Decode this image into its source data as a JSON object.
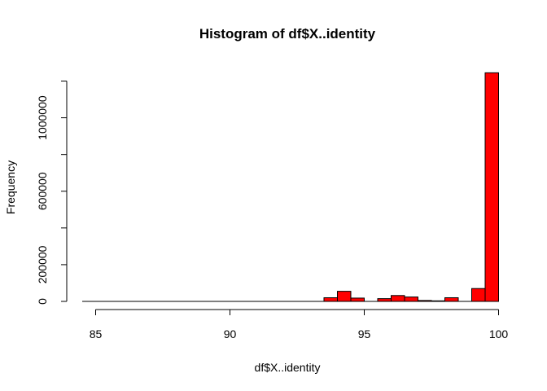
{
  "chart_data": {
    "type": "bar",
    "title": "Histogram of df$X..identity",
    "xlabel": "df$X..identity",
    "ylabel": "Frequency",
    "bar_color": "#ff0000",
    "bar_edge_color": "#000000",
    "xlim": [
      85,
      100
    ],
    "ylim": [
      0,
      1200000
    ],
    "x_ticks": [
      85,
      90,
      95,
      100
    ],
    "y_ticks": [
      0,
      200000,
      400000,
      600000,
      800000,
      1000000,
      1200000
    ],
    "y_tick_labels": [
      "0",
      "200000",
      "",
      "600000",
      "",
      "1000000",
      ""
    ],
    "bins": [
      {
        "x0": 84.5,
        "x1": 85.0,
        "value": 0
      },
      {
        "x0": 85.0,
        "x1": 85.5,
        "value": 0
      },
      {
        "x0": 85.5,
        "x1": 86.0,
        "value": 0
      },
      {
        "x0": 86.0,
        "x1": 86.5,
        "value": 0
      },
      {
        "x0": 86.5,
        "x1": 87.0,
        "value": 0
      },
      {
        "x0": 87.0,
        "x1": 87.5,
        "value": 0
      },
      {
        "x0": 87.5,
        "x1": 88.0,
        "value": 0
      },
      {
        "x0": 88.0,
        "x1": 88.5,
        "value": 0
      },
      {
        "x0": 88.5,
        "x1": 89.0,
        "value": 0
      },
      {
        "x0": 89.0,
        "x1": 89.5,
        "value": 0
      },
      {
        "x0": 89.5,
        "x1": 90.0,
        "value": 0
      },
      {
        "x0": 90.0,
        "x1": 90.5,
        "value": 0
      },
      {
        "x0": 90.5,
        "x1": 91.0,
        "value": 0
      },
      {
        "x0": 91.0,
        "x1": 91.5,
        "value": 0
      },
      {
        "x0": 91.5,
        "x1": 92.0,
        "value": 0
      },
      {
        "x0": 92.0,
        "x1": 92.5,
        "value": 0
      },
      {
        "x0": 92.5,
        "x1": 93.0,
        "value": 0
      },
      {
        "x0": 93.0,
        "x1": 93.5,
        "value": 0
      },
      {
        "x0": 93.5,
        "x1": 94.0,
        "value": 20000
      },
      {
        "x0": 94.0,
        "x1": 94.5,
        "value": 55000
      },
      {
        "x0": 94.5,
        "x1": 95.0,
        "value": 18000
      },
      {
        "x0": 95.0,
        "x1": 95.5,
        "value": 0
      },
      {
        "x0": 95.5,
        "x1": 96.0,
        "value": 15000
      },
      {
        "x0": 96.0,
        "x1": 96.5,
        "value": 32000
      },
      {
        "x0": 96.5,
        "x1": 97.0,
        "value": 24000
      },
      {
        "x0": 97.0,
        "x1": 97.5,
        "value": 5000
      },
      {
        "x0": 97.5,
        "x1": 98.0,
        "value": 3000
      },
      {
        "x0": 98.0,
        "x1": 98.5,
        "value": 20000
      },
      {
        "x0": 98.5,
        "x1": 99.0,
        "value": 0
      },
      {
        "x0": 99.0,
        "x1": 99.5,
        "value": 70000
      },
      {
        "x0": 99.5,
        "x1": 100.0,
        "value": 1245000
      }
    ]
  }
}
